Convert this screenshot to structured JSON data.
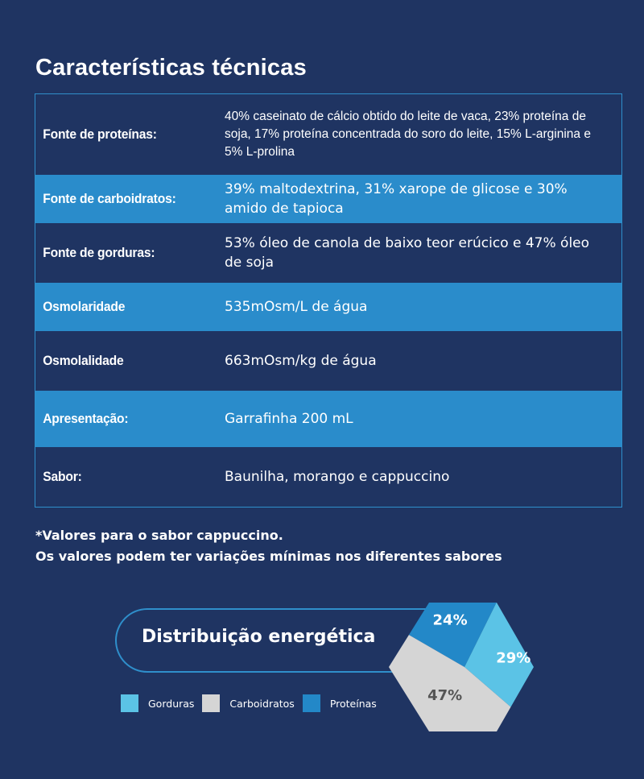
{
  "title": "Características técnicas",
  "table": {
    "rows": [
      {
        "label": "Fonte de proteínas:",
        "value": "40% caseinato de cálcio obtido do leite de vaca, 23% proteína de soja, 17% proteína concentrada do soro do leite, 15% L-arginina e 5% L-prolina"
      },
      {
        "label": "Fonte de carboidratos:",
        "value": "39% maltodextrina, 31% xarope de glicose e 30% amido de tapioca"
      },
      {
        "label": "Fonte de gorduras:",
        "value": "53% óleo de canola de baixo teor erúcico e 47% óleo de soja"
      },
      {
        "label": "Osmolaridade",
        "value": "535mOsm/L de água"
      },
      {
        "label": "Osmolalidade",
        "value": "663mOsm/kg de água"
      },
      {
        "label": "Apresentação:",
        "value": "Garrafinha 200 mL"
      },
      {
        "label": "Sabor:",
        "value": "Baunilha, morango e cappuccino"
      }
    ]
  },
  "notes": {
    "line1": "*Valores para o sabor cappuccino.",
    "line2": "Os valores podem ter variações mínimas nos diferentes sabores"
  },
  "colors": {
    "background": "#1f3462",
    "row_light": "#2a8ccb",
    "gorduras": "#5bc3e6",
    "carboidratos": "#d5d5d5",
    "proteinas": "#2388c8"
  },
  "chart_data": {
    "type": "pie",
    "title": "Distribuição energética",
    "categories": [
      "Gorduras",
      "Carboidratos",
      "Proteínas"
    ],
    "values": [
      29,
      47,
      24
    ],
    "labels": [
      "29%",
      "47%",
      "24%"
    ],
    "legend": [
      "Gorduras",
      "Carboidratos",
      "Proteínas"
    ],
    "legend_placement": "bottom-left"
  }
}
